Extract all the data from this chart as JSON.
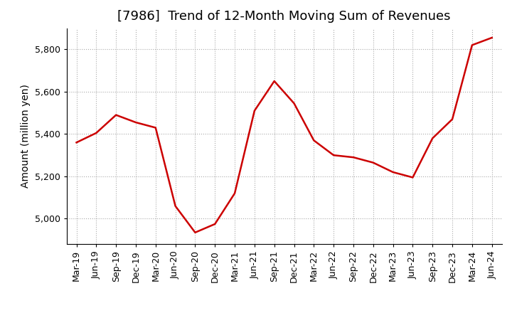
{
  "title": "[7986]  Trend of 12-Month Moving Sum of Revenues",
  "ylabel": "Amount (million yen)",
  "line_color": "#cc0000",
  "background_color": "#ffffff",
  "plot_bg_color": "#ffffff",
  "grid_color": "#aaaaaa",
  "x_labels": [
    "Mar-19",
    "Jun-19",
    "Sep-19",
    "Dec-19",
    "Mar-20",
    "Jun-20",
    "Sep-20",
    "Dec-20",
    "Mar-21",
    "Jun-21",
    "Sep-21",
    "Dec-21",
    "Mar-22",
    "Jun-22",
    "Sep-22",
    "Dec-22",
    "Mar-23",
    "Jun-23",
    "Sep-23",
    "Dec-23",
    "Mar-24",
    "Jun-24"
  ],
  "values": [
    5360,
    5405,
    5490,
    5455,
    5430,
    5060,
    4935,
    4975,
    5120,
    5510,
    5650,
    5545,
    5370,
    5300,
    5290,
    5265,
    5220,
    5195,
    5380,
    5470,
    5820,
    5855
  ],
  "ylim": [
    4880,
    5900
  ],
  "yticks": [
    5000,
    5200,
    5400,
    5600,
    5800
  ],
  "title_fontsize": 13,
  "axis_fontsize": 10,
  "tick_fontsize": 9,
  "line_width": 1.8
}
